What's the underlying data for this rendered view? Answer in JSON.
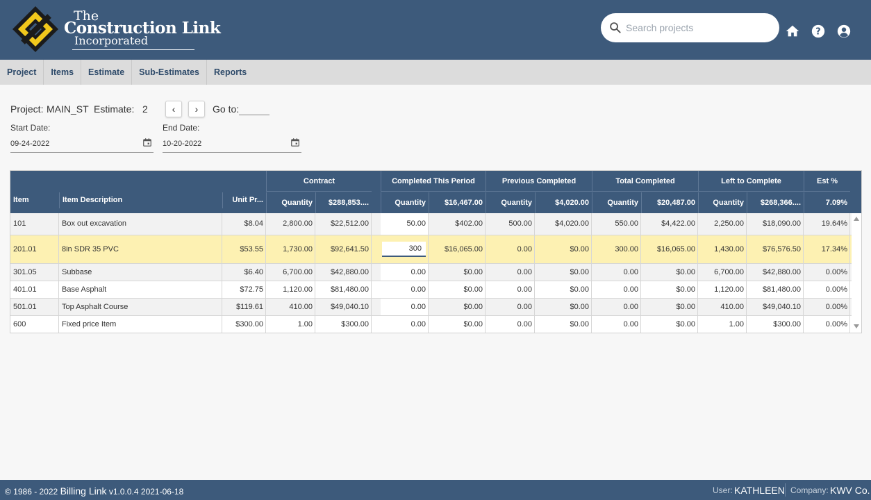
{
  "header": {
    "logo_the": "The",
    "logo_name": "Construction Link",
    "logo_inc": "Incorporated",
    "search_placeholder": "Search projects",
    "icons": [
      "home-icon",
      "help-icon",
      "account-icon"
    ]
  },
  "nav": [
    "Project",
    "Items",
    "Estimate",
    "Sub-Estimates",
    "Reports"
  ],
  "projectbar": {
    "project_label": "Project:",
    "project_value": "MAIN_ST",
    "estimate_label": "Estimate:",
    "estimate_value": "2",
    "prev": "‹",
    "next": "›",
    "goto_label": "Go to:",
    "start_label": "Start Date:",
    "start_value": "09-24-2022",
    "end_label": "End Date:",
    "end_value": "10-20-2022"
  },
  "grid": {
    "groups": {
      "contract": "Contract",
      "completed_period": "Completed This Period",
      "previous": "Previous Completed",
      "total": "Total Completed",
      "left": "Left to Complete",
      "est": "Est %"
    },
    "headers": {
      "item": "Item",
      "desc": "Item Description",
      "unit": "Unit Pr...",
      "contract_qty": "Quantity",
      "contract_amt": "$288,853....",
      "period_qty": "Quantity",
      "period_amt": "$16,467.00",
      "prev_qty": "Quantity",
      "prev_amt": "$4,020.00",
      "total_qty": "Quantity",
      "total_amt": "$20,487.00",
      "left_qty": "Quantity",
      "left_amt": "$268,366....",
      "est_pct": "7.09%"
    },
    "rows": [
      {
        "item": "101",
        "desc": "Box out excavation",
        "unit": "$8.04",
        "cq": "2,800.00",
        "ca": "$22,512.00",
        "pq": "50.00",
        "pa": "$402.00",
        "vq": "500.00",
        "va": "$4,020.00",
        "tq": "550.00",
        "ta": "$4,422.00",
        "lq": "2,250.00",
        "la": "$18,090.00",
        "est": "19.64%"
      },
      {
        "item": "201.01",
        "desc": "8in SDR 35 PVC",
        "unit": "$53.55",
        "cq": "1,730.00",
        "ca": "$92,641.50",
        "pq": "300",
        "pa": "$16,065.00",
        "vq": "0.00",
        "va": "$0.00",
        "tq": "300.00",
        "ta": "$16,065.00",
        "lq": "1,430.00",
        "la": "$76,576.50",
        "est": "17.34%"
      },
      {
        "item": "301.05",
        "desc": "Subbase",
        "unit": "$6.40",
        "cq": "6,700.00",
        "ca": "$42,880.00",
        "pq": "0.00",
        "pa": "$0.00",
        "vq": "0.00",
        "va": "$0.00",
        "tq": "0.00",
        "ta": "$0.00",
        "lq": "6,700.00",
        "la": "$42,880.00",
        "est": "0.00%"
      },
      {
        "item": "401.01",
        "desc": "Base Asphalt",
        "unit": "$72.75",
        "cq": "1,120.00",
        "ca": "$81,480.00",
        "pq": "0.00",
        "pa": "$0.00",
        "vq": "0.00",
        "va": "$0.00",
        "tq": "0.00",
        "ta": "$0.00",
        "lq": "1,120.00",
        "la": "$81,480.00",
        "est": "0.00%"
      },
      {
        "item": "501.01",
        "desc": "Top Asphalt Course",
        "unit": "$119.61",
        "cq": "410.00",
        "ca": "$49,040.10",
        "pq": "0.00",
        "pa": "$0.00",
        "vq": "0.00",
        "va": "$0.00",
        "tq": "0.00",
        "ta": "$0.00",
        "lq": "410.00",
        "la": "$49,040.10",
        "est": "0.00%"
      },
      {
        "item": "600",
        "desc": "Fixed price Item",
        "unit": "$300.00",
        "cq": "1.00",
        "ca": "$300.00",
        "pq": "0.00",
        "pa": "$0.00",
        "vq": "0.00",
        "va": "$0.00",
        "tq": "0.00",
        "ta": "$0.00",
        "lq": "1.00",
        "la": "$300.00",
        "est": "0.00%"
      }
    ]
  },
  "footer": {
    "copyright": "© 1986 - 2022",
    "app": "Billing Link",
    "version": "v1.0.0.4 2021-06-18",
    "user_label": "User:",
    "user": "KATHLEEN",
    "company_label": "Company:",
    "company": "KWV Co."
  },
  "colors": {
    "header": "#3d5a7b",
    "selected_row": "#fdf1b2",
    "logo_yellow": "#f2c81c"
  }
}
